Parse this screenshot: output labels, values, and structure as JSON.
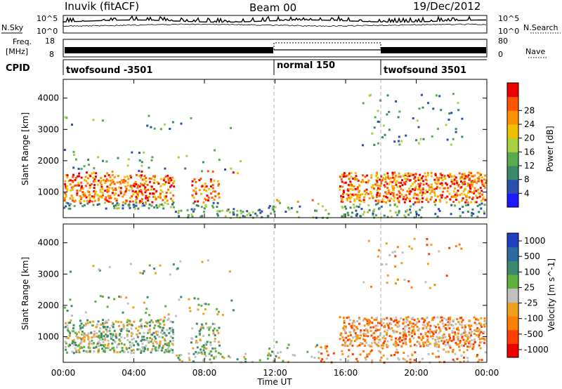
{
  "header": {
    "title": "Inuvik (fitACF)",
    "beam": "Beam 00",
    "date": "19/Dec/2012"
  },
  "noise_panel": {
    "left_label": "N.Sky",
    "right_label": "N.Search",
    "left_ticks": [
      "10^5",
      "10^0"
    ],
    "right_ticks": [
      "10^5",
      "10^0"
    ]
  },
  "freq_panel": {
    "label_line1": "Freq.",
    "label_line2": "[MHz]",
    "right_label": "Nave",
    "left_ticks": [
      "18",
      "8"
    ],
    "right_ticks": [
      "80",
      "0"
    ]
  },
  "cpid_panel": {
    "label": "CPID",
    "segments": [
      "twofsound -3501",
      "normal 150",
      "twofsound 3501"
    ]
  },
  "colors": {
    "power_scale": [
      "#1a1aff",
      "#2a4fb0",
      "#3a8a6a",
      "#5aaa50",
      "#a8d040",
      "#f0c000",
      "#ff9000",
      "#ff5500",
      "#ee0000"
    ],
    "velocity_scale": [
      "#2040c0",
      "#2a6aa0",
      "#3a8a70",
      "#60b040",
      "#c0c0c0",
      "#f0a020",
      "#ff8000",
      "#ff4000",
      "#ee0000"
    ]
  },
  "chart_data": [
    {
      "type": "heatmap",
      "name": "power",
      "ylabel": "Slant Range [km]",
      "yticks": [
        "1000",
        "2000",
        "3000",
        "4000"
      ],
      "ylim": [
        180,
        4600
      ],
      "colorbar_label": "Power [dB]",
      "colorbar_ticks": [
        "4",
        "8",
        "12",
        "16",
        "20",
        "24",
        "28"
      ],
      "clim": [
        0,
        32
      ]
    },
    {
      "type": "heatmap",
      "name": "velocity",
      "ylabel": "Slant Range [km]",
      "yticks": [
        "1000",
        "2000",
        "3000",
        "4000"
      ],
      "ylim": [
        180,
        4600
      ],
      "colorbar_label": "Velocity [m s^-1]",
      "colorbar_ticks": [
        "1000",
        "500",
        "100",
        "25",
        "-25",
        "-100",
        "-500",
        "-1000"
      ]
    }
  ],
  "xaxis": {
    "label": "Time UT",
    "ticks": [
      "00:00",
      "04:00",
      "08:00",
      "12:00",
      "16:00",
      "20:00",
      "00:00"
    ]
  }
}
